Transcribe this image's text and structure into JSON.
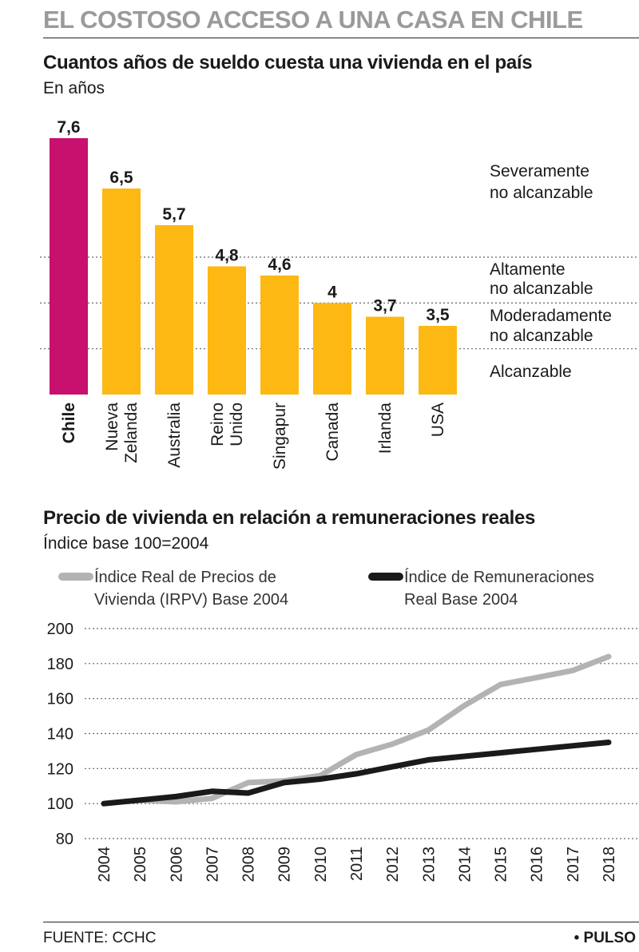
{
  "header": {
    "main_title": "EL COSTOSO ACCESO A UNA CASA EN CHILE"
  },
  "footer": {
    "source": "FUENTE: CCHC",
    "brand": "• PULSO"
  },
  "colors": {
    "highlight": "#c8106e",
    "bar": "#fdb813",
    "irpv_line": "#b3b3b3",
    "remuneraciones_line": "#1a1a1a",
    "gridline": "#666666",
    "title_gray": "#9a9a9a"
  },
  "chart_data": [
    {
      "type": "bar",
      "title": "Cuantos años de sueldo cuesta una vivienda en el país",
      "subtitle": "En años",
      "categories": [
        "Chile",
        "Nueva Zelanda",
        "Australia",
        "Reino Unido",
        "Singapur",
        "Canada",
        "Irlanda",
        "USA"
      ],
      "values": [
        7.6,
        6.5,
        5.7,
        4.8,
        4.6,
        4,
        3.7,
        3.5
      ],
      "value_labels": [
        "7,6",
        "6,5",
        "5,7",
        "4,8",
        "4,6",
        "4",
        "3,7",
        "3,5"
      ],
      "highlight_category": "Chile",
      "thresholds": [
        3,
        4,
        5
      ],
      "zones": [
        "Severamente no alcanzable",
        "Altamente no alcanzable",
        "Moderadamente no alcanzable",
        "Alcanzable"
      ],
      "ylim": [
        2,
        7.6
      ],
      "grid": "dotted threshold lines",
      "legend": "none"
    },
    {
      "type": "line",
      "title": "Precio de vivienda en relación a remuneraciones reales",
      "subtitle": "Índice base 100=2004",
      "x": [
        2004,
        2005,
        2006,
        2007,
        2008,
        2009,
        2010,
        2011,
        2012,
        2013,
        2014,
        2015,
        2016,
        2017,
        2018
      ],
      "series": [
        {
          "name": "Índice Real de Precios de Vivienda (IRPV) Base 2004",
          "values": [
            100,
            102,
            101,
            103,
            112,
            113,
            116,
            128,
            134,
            142,
            156,
            168,
            172,
            176,
            184
          ]
        },
        {
          "name": "Índice de Remuneraciones Real Base 2004",
          "values": [
            100,
            102,
            104,
            107,
            106,
            112,
            114,
            117,
            121,
            125,
            127,
            129,
            131,
            133,
            135
          ]
        }
      ],
      "yticks": [
        80,
        100,
        120,
        140,
        160,
        180,
        200
      ],
      "ylim": [
        80,
        200
      ],
      "grid": "dotted horizontal",
      "legend": "top"
    }
  ]
}
